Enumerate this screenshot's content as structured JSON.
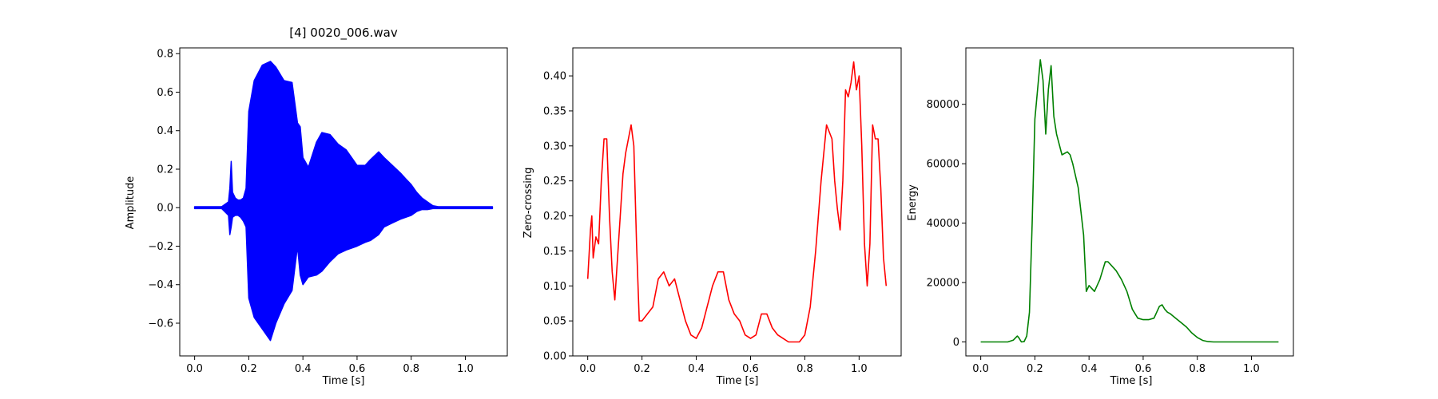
{
  "chart_data": [
    {
      "type": "line",
      "title": "[4] 0020_006.wav",
      "xlabel": "Time [s]",
      "ylabel": "Amplitude",
      "color": "#0000ff",
      "xlim": [
        -0.055,
        1.155
      ],
      "ylim": [
        -0.77,
        0.83
      ],
      "xticks": [
        0.0,
        0.2,
        0.4,
        0.6,
        0.8,
        1.0
      ],
      "xtick_labels": [
        "0.0",
        "0.2",
        "0.4",
        "0.6",
        "0.8",
        "1.0"
      ],
      "yticks": [
        -0.6,
        -0.4,
        -0.2,
        0.0,
        0.2,
        0.4,
        0.6,
        0.8
      ],
      "ytick_labels": [
        "−0.6",
        "−0.4",
        "−0.2",
        "0.0",
        "0.2",
        "0.4",
        "0.6",
        "0.8"
      ],
      "envelope": {
        "t": [
          0.0,
          0.1,
          0.125,
          0.13,
          0.135,
          0.14,
          0.15,
          0.16,
          0.17,
          0.18,
          0.19,
          0.2,
          0.22,
          0.25,
          0.28,
          0.3,
          0.33,
          0.36,
          0.38,
          0.39,
          0.4,
          0.42,
          0.45,
          0.47,
          0.5,
          0.53,
          0.56,
          0.58,
          0.6,
          0.63,
          0.65,
          0.68,
          0.7,
          0.73,
          0.76,
          0.78,
          0.8,
          0.82,
          0.84,
          0.86,
          0.88,
          0.9,
          0.95,
          1.0,
          1.1
        ],
        "upper": [
          0.005,
          0.005,
          0.03,
          0.1,
          0.24,
          0.08,
          0.05,
          0.04,
          0.04,
          0.05,
          0.1,
          0.5,
          0.66,
          0.74,
          0.76,
          0.73,
          0.66,
          0.65,
          0.44,
          0.42,
          0.26,
          0.21,
          0.34,
          0.39,
          0.38,
          0.33,
          0.3,
          0.26,
          0.22,
          0.22,
          0.25,
          0.29,
          0.26,
          0.22,
          0.18,
          0.15,
          0.12,
          0.08,
          0.05,
          0.03,
          0.01,
          0.005,
          0.005,
          0.005,
          0.005
        ],
        "lower": [
          -0.005,
          -0.005,
          -0.04,
          -0.14,
          -0.1,
          -0.05,
          -0.04,
          -0.04,
          -0.05,
          -0.07,
          -0.1,
          -0.47,
          -0.57,
          -0.63,
          -0.69,
          -0.6,
          -0.5,
          -0.43,
          -0.2,
          -0.35,
          -0.4,
          -0.36,
          -0.35,
          -0.33,
          -0.28,
          -0.24,
          -0.22,
          -0.21,
          -0.2,
          -0.18,
          -0.17,
          -0.14,
          -0.1,
          -0.08,
          -0.06,
          -0.05,
          -0.04,
          -0.02,
          -0.01,
          -0.01,
          -0.005,
          -0.005,
          -0.005,
          -0.005,
          -0.005
        ]
      }
    },
    {
      "type": "line",
      "title": "",
      "xlabel": "Time [s]",
      "ylabel": "Zero-crossing",
      "color": "#ff0000",
      "xlim": [
        -0.055,
        1.155
      ],
      "ylim": [
        0.0,
        0.44
      ],
      "xticks": [
        0.0,
        0.2,
        0.4,
        0.6,
        0.8,
        1.0
      ],
      "xtick_labels": [
        "0.0",
        "0.2",
        "0.4",
        "0.6",
        "0.8",
        "1.0"
      ],
      "yticks": [
        0.0,
        0.05,
        0.1,
        0.15,
        0.2,
        0.25,
        0.3,
        0.35,
        0.4
      ],
      "ytick_labels": [
        "0.00",
        "0.05",
        "0.10",
        "0.15",
        "0.20",
        "0.25",
        "0.30",
        "0.35",
        "0.40"
      ],
      "x": [
        0.0,
        0.01,
        0.015,
        0.02,
        0.03,
        0.04,
        0.05,
        0.06,
        0.07,
        0.08,
        0.09,
        0.1,
        0.12,
        0.13,
        0.14,
        0.15,
        0.16,
        0.17,
        0.18,
        0.19,
        0.2,
        0.22,
        0.24,
        0.26,
        0.28,
        0.29,
        0.3,
        0.32,
        0.34,
        0.36,
        0.38,
        0.4,
        0.42,
        0.44,
        0.46,
        0.48,
        0.5,
        0.52,
        0.54,
        0.56,
        0.58,
        0.6,
        0.62,
        0.64,
        0.66,
        0.68,
        0.7,
        0.72,
        0.74,
        0.76,
        0.78,
        0.8,
        0.82,
        0.84,
        0.86,
        0.88,
        0.9,
        0.91,
        0.92,
        0.93,
        0.94,
        0.95,
        0.96,
        0.97,
        0.98,
        0.99,
        1.0,
        1.01,
        1.02,
        1.03,
        1.04,
        1.05,
        1.06,
        1.07,
        1.08,
        1.09,
        1.1
      ],
      "y": [
        0.11,
        0.18,
        0.2,
        0.14,
        0.17,
        0.16,
        0.25,
        0.31,
        0.31,
        0.2,
        0.12,
        0.08,
        0.2,
        0.26,
        0.29,
        0.31,
        0.33,
        0.3,
        0.16,
        0.05,
        0.05,
        0.06,
        0.07,
        0.11,
        0.12,
        0.11,
        0.1,
        0.11,
        0.08,
        0.05,
        0.03,
        0.025,
        0.04,
        0.07,
        0.1,
        0.12,
        0.12,
        0.08,
        0.06,
        0.05,
        0.03,
        0.025,
        0.03,
        0.06,
        0.06,
        0.04,
        0.03,
        0.025,
        0.02,
        0.02,
        0.02,
        0.03,
        0.07,
        0.15,
        0.25,
        0.33,
        0.31,
        0.25,
        0.21,
        0.18,
        0.25,
        0.38,
        0.37,
        0.39,
        0.42,
        0.38,
        0.4,
        0.3,
        0.16,
        0.1,
        0.16,
        0.33,
        0.31,
        0.31,
        0.24,
        0.14,
        0.1
      ]
    },
    {
      "type": "line",
      "title": "",
      "xlabel": "Time [s]",
      "ylabel": "Energy",
      "color": "#008000",
      "xlim": [
        -0.055,
        1.155
      ],
      "ylim": [
        -4700,
        99000
      ],
      "xticks": [
        0.0,
        0.2,
        0.4,
        0.6,
        0.8,
        1.0
      ],
      "xtick_labels": [
        "0.0",
        "0.2",
        "0.4",
        "0.6",
        "0.8",
        "1.0"
      ],
      "yticks": [
        0,
        20000,
        40000,
        60000,
        80000
      ],
      "ytick_labels": [
        "0",
        "20000",
        "40000",
        "60000",
        "80000"
      ],
      "x": [
        0.0,
        0.1,
        0.12,
        0.135,
        0.14,
        0.15,
        0.16,
        0.17,
        0.18,
        0.19,
        0.2,
        0.21,
        0.22,
        0.23,
        0.24,
        0.25,
        0.26,
        0.27,
        0.28,
        0.3,
        0.32,
        0.33,
        0.34,
        0.36,
        0.38,
        0.39,
        0.4,
        0.42,
        0.44,
        0.46,
        0.47,
        0.48,
        0.5,
        0.52,
        0.54,
        0.56,
        0.58,
        0.6,
        0.62,
        0.64,
        0.66,
        0.67,
        0.68,
        0.69,
        0.7,
        0.72,
        0.74,
        0.76,
        0.78,
        0.8,
        0.82,
        0.84,
        0.86,
        0.88,
        0.9,
        1.0,
        1.1
      ],
      "y": [
        0,
        0,
        600,
        2000,
        1500,
        0,
        100,
        2000,
        10000,
        40000,
        75000,
        85000,
        95000,
        88000,
        70000,
        85000,
        93000,
        76000,
        70000,
        63000,
        64000,
        63000,
        60000,
        52000,
        36000,
        17000,
        19000,
        17000,
        21000,
        27000,
        27000,
        26000,
        24000,
        21000,
        17000,
        11000,
        8000,
        7500,
        7500,
        8000,
        12000,
        12500,
        11000,
        10000,
        9500,
        8000,
        6500,
        5000,
        3000,
        1500,
        500,
        100,
        0,
        0,
        0,
        0,
        0
      ]
    }
  ]
}
